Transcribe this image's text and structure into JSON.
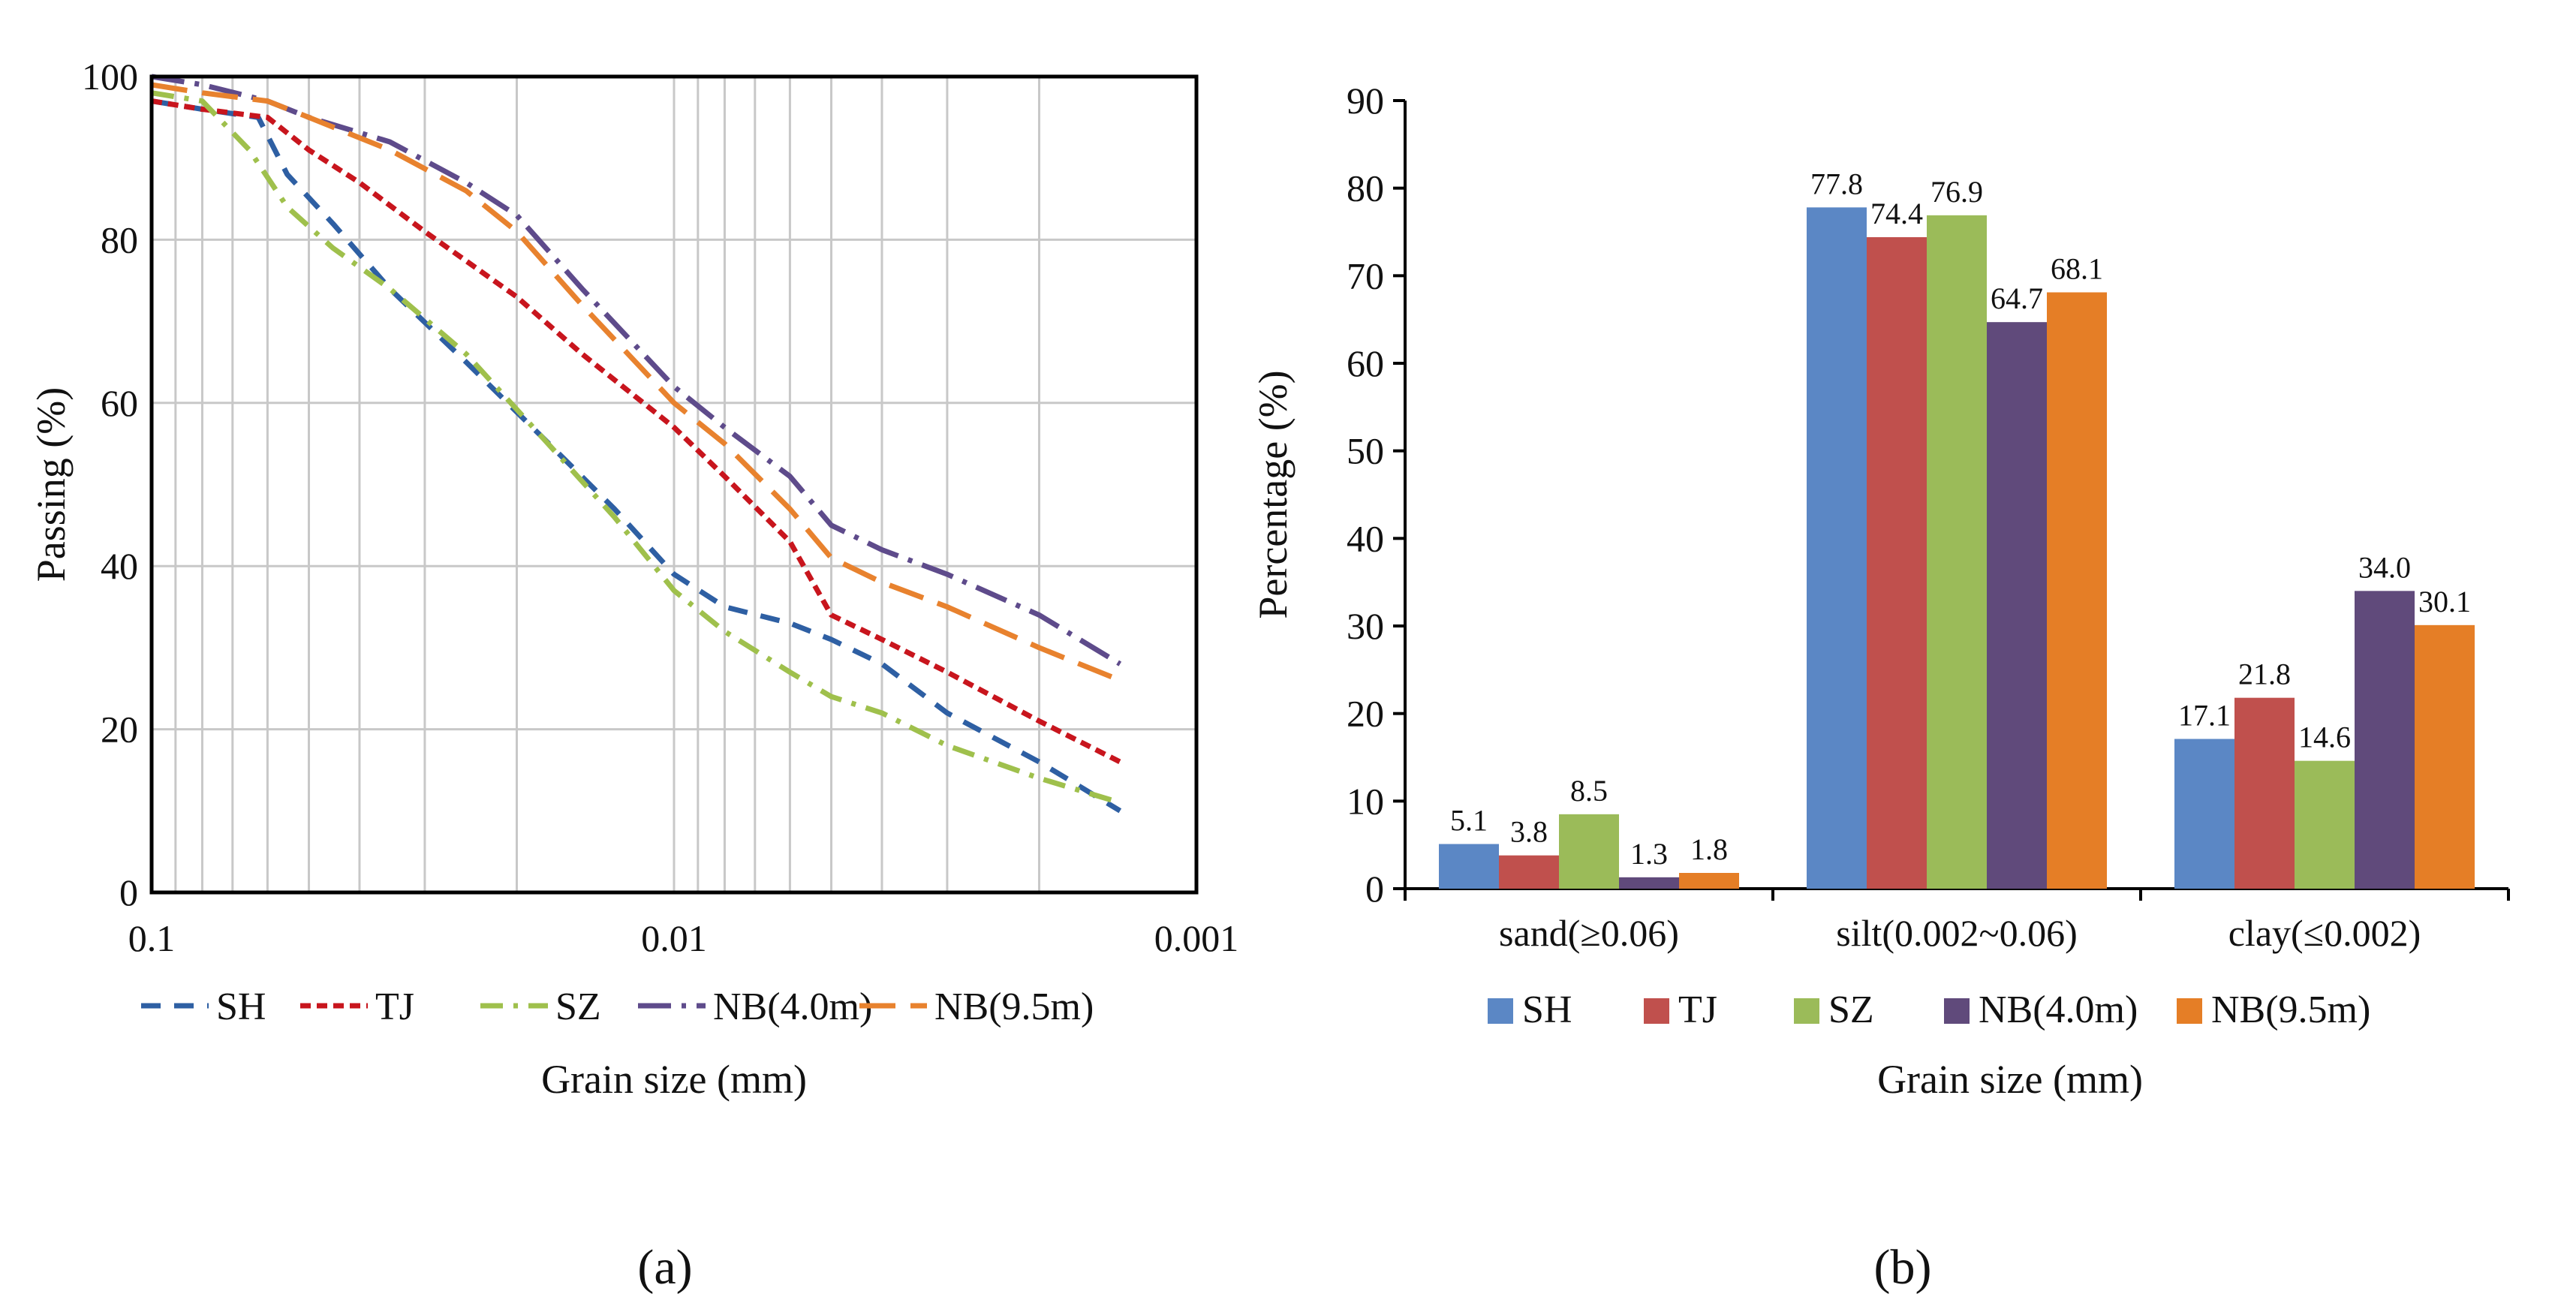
{
  "chart_data": [
    {
      "panel_label": "(a)",
      "type": "line",
      "xlabel": "Grain size (mm)",
      "ylabel": "Passing (%)",
      "x_scale": "log",
      "x_reversed": true,
      "xlim": [
        0.1,
        0.001
      ],
      "ylim": [
        0,
        100
      ],
      "x_ticks": [
        {
          "v": 0.1,
          "label": "0.1"
        },
        {
          "v": 0.01,
          "label": "0.01"
        },
        {
          "v": 0.001,
          "label": "0.001"
        }
      ],
      "y_ticks": [
        {
          "v": 0,
          "label": "0"
        },
        {
          "v": 20,
          "label": "20"
        },
        {
          "v": 40,
          "label": "40"
        },
        {
          "v": 60,
          "label": "60"
        },
        {
          "v": 80,
          "label": "80"
        },
        {
          "v": 100,
          "label": "100"
        }
      ],
      "grid": true,
      "legend_position": "bottom",
      "series": [
        {
          "name": "SH",
          "color": "#2e5fa3",
          "dash": "dashed",
          "points": [
            [
              0.1,
              97
            ],
            [
              0.08,
              96
            ],
            [
              0.0625,
              95
            ],
            [
              0.055,
              88
            ],
            [
              0.045,
              82
            ],
            [
              0.035,
              74
            ],
            [
              0.025,
              65
            ],
            [
              0.018,
              56
            ],
            [
              0.013,
              47
            ],
            [
              0.01,
              39
            ],
            [
              0.008,
              35
            ],
            [
              0.006,
              33
            ],
            [
              0.005,
              31
            ],
            [
              0.004,
              28
            ],
            [
              0.003,
              22
            ],
            [
              0.002,
              16
            ],
            [
              0.0014,
              10
            ]
          ]
        },
        {
          "name": "TJ",
          "color": "#c8151d",
          "dash": "dotted",
          "points": [
            [
              0.1,
              97
            ],
            [
              0.08,
              96
            ],
            [
              0.06,
              95
            ],
            [
              0.05,
              91
            ],
            [
              0.04,
              87
            ],
            [
              0.03,
              81
            ],
            [
              0.02,
              73
            ],
            [
              0.015,
              66
            ],
            [
              0.01,
              57
            ],
            [
              0.008,
              51
            ],
            [
              0.006,
              43
            ],
            [
              0.005,
              34
            ],
            [
              0.004,
              31
            ],
            [
              0.003,
              27
            ],
            [
              0.002,
              21
            ],
            [
              0.0014,
              16
            ]
          ]
        },
        {
          "name": "SZ",
          "color": "#9fc04c",
          "dash": "dashdot",
          "points": [
            [
              0.1,
              98
            ],
            [
              0.08,
              97
            ],
            [
              0.065,
              91
            ],
            [
              0.055,
              84
            ],
            [
              0.045,
              79
            ],
            [
              0.035,
              74
            ],
            [
              0.025,
              66
            ],
            [
              0.018,
              56
            ],
            [
              0.013,
              46
            ],
            [
              0.01,
              37
            ],
            [
              0.008,
              32
            ],
            [
              0.006,
              27
            ],
            [
              0.005,
              24
            ],
            [
              0.004,
              22
            ],
            [
              0.003,
              18
            ],
            [
              0.002,
              14
            ],
            [
              0.0014,
              11
            ]
          ]
        },
        {
          "name": "NB(4.0m)",
          "color": "#5e4b8b",
          "dash": "dashdotlong",
          "points": [
            [
              0.1,
              100
            ],
            [
              0.08,
              99
            ],
            [
              0.06,
              97
            ],
            [
              0.05,
              95
            ],
            [
              0.035,
              92
            ],
            [
              0.025,
              87
            ],
            [
              0.02,
              83
            ],
            [
              0.015,
              74
            ],
            [
              0.01,
              62
            ],
            [
              0.008,
              57
            ],
            [
              0.006,
              51
            ],
            [
              0.005,
              45
            ],
            [
              0.004,
              42
            ],
            [
              0.003,
              39
            ],
            [
              0.002,
              34
            ],
            [
              0.0014,
              28
            ]
          ]
        },
        {
          "name": "NB(9.5m)",
          "color": "#e8822e",
          "dash": "longdash",
          "points": [
            [
              0.1,
              99
            ],
            [
              0.08,
              98
            ],
            [
              0.06,
              97
            ],
            [
              0.05,
              95
            ],
            [
              0.035,
              91
            ],
            [
              0.025,
              86
            ],
            [
              0.02,
              81
            ],
            [
              0.015,
              72
            ],
            [
              0.01,
              60
            ],
            [
              0.008,
              55
            ],
            [
              0.006,
              47
            ],
            [
              0.005,
              41
            ],
            [
              0.004,
              38
            ],
            [
              0.003,
              35
            ],
            [
              0.002,
              30
            ],
            [
              0.0014,
              26
            ]
          ]
        }
      ]
    },
    {
      "panel_label": "(b)",
      "type": "bar",
      "xlabel": "Grain size (mm)",
      "ylabel": "Percentage (%)",
      "ylim": [
        0,
        90
      ],
      "y_ticks": [
        0,
        10,
        20,
        30,
        40,
        50,
        60,
        70,
        80,
        90
      ],
      "grid": false,
      "legend_position": "bottom",
      "categories": [
        "sand(≥0.06)",
        "silt(0.002~0.06)",
        "clay(≤0.002)"
      ],
      "series": [
        {
          "name": "SH",
          "color": "#5b87c5",
          "values": [
            5.1,
            77.8,
            17.1
          ],
          "labels": [
            "5.1",
            "77.8",
            "17.1"
          ]
        },
        {
          "name": "TJ",
          "color": "#c0504d",
          "values": [
            3.8,
            74.4,
            21.8
          ],
          "labels": [
            "3.8",
            "74.4",
            "21.8"
          ]
        },
        {
          "name": "SZ",
          "color": "#9bbb59",
          "values": [
            8.5,
            76.9,
            14.6
          ],
          "labels": [
            "8.5",
            "76.9",
            "14.6"
          ]
        },
        {
          "name": "NB(4.0m)",
          "color": "#604a7b",
          "values": [
            1.3,
            64.7,
            34.0
          ],
          "labels": [
            "1.3",
            "64.7",
            "34.0"
          ]
        },
        {
          "name": "NB(9.5m)",
          "color": "#e57e26",
          "values": [
            1.8,
            68.1,
            30.1
          ],
          "labels": [
            "1.8",
            "68.1",
            "30.1"
          ]
        }
      ]
    }
  ]
}
